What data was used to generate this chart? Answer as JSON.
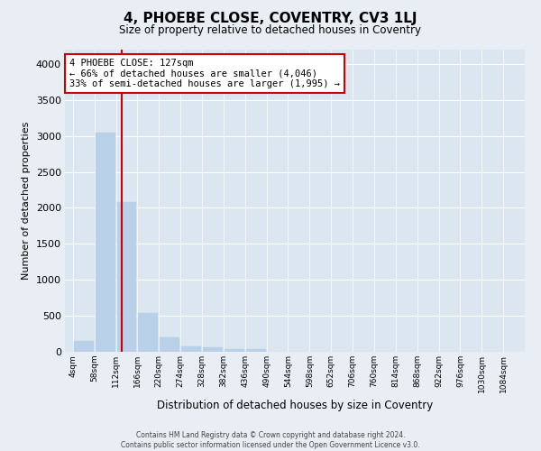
{
  "title": "4, PHOEBE CLOSE, COVENTRY, CV3 1LJ",
  "subtitle": "Size of property relative to detached houses in Coventry",
  "xlabel": "Distribution of detached houses by size in Coventry",
  "ylabel": "Number of detached properties",
  "footer_line1": "Contains HM Land Registry data © Crown copyright and database right 2024.",
  "footer_line2": "Contains public sector information licensed under the Open Government Licence v3.0.",
  "property_size": 127,
  "annotation_title": "4 PHOEBE CLOSE: 127sqm",
  "annotation_line2": "← 66% of detached houses are smaller (4,046)",
  "annotation_line3": "33% of semi-detached houses are larger (1,995) →",
  "bin_edges": [
    4,
    58,
    112,
    166,
    220,
    274,
    328,
    382,
    436,
    490,
    544,
    598,
    652,
    706,
    760,
    814,
    868,
    922,
    976,
    1030,
    1084
  ],
  "bin_labels": [
    "4sqm",
    "58sqm",
    "112sqm",
    "166sqm",
    "220sqm",
    "274sqm",
    "328sqm",
    "382sqm",
    "436sqm",
    "490sqm",
    "544sqm",
    "598sqm",
    "652sqm",
    "706sqm",
    "760sqm",
    "814sqm",
    "868sqm",
    "922sqm",
    "976sqm",
    "1030sqm",
    "1084sqm"
  ],
  "bar_heights": [
    150,
    3050,
    2080,
    540,
    200,
    80,
    60,
    40,
    35,
    5,
    0,
    0,
    2,
    0,
    0,
    0,
    0,
    0,
    0,
    0
  ],
  "bar_color": "#b8d0e8",
  "vline_color": "#cc0000",
  "vline_x": 127,
  "annotation_box_color": "#cc0000",
  "background_color": "#e8eef4",
  "plot_bg_color": "#dce6f0",
  "grid_color": "#ffffff",
  "ylim": [
    0,
    4200
  ],
  "yticks": [
    0,
    500,
    1000,
    1500,
    2000,
    2500,
    3000,
    3500,
    4000
  ]
}
